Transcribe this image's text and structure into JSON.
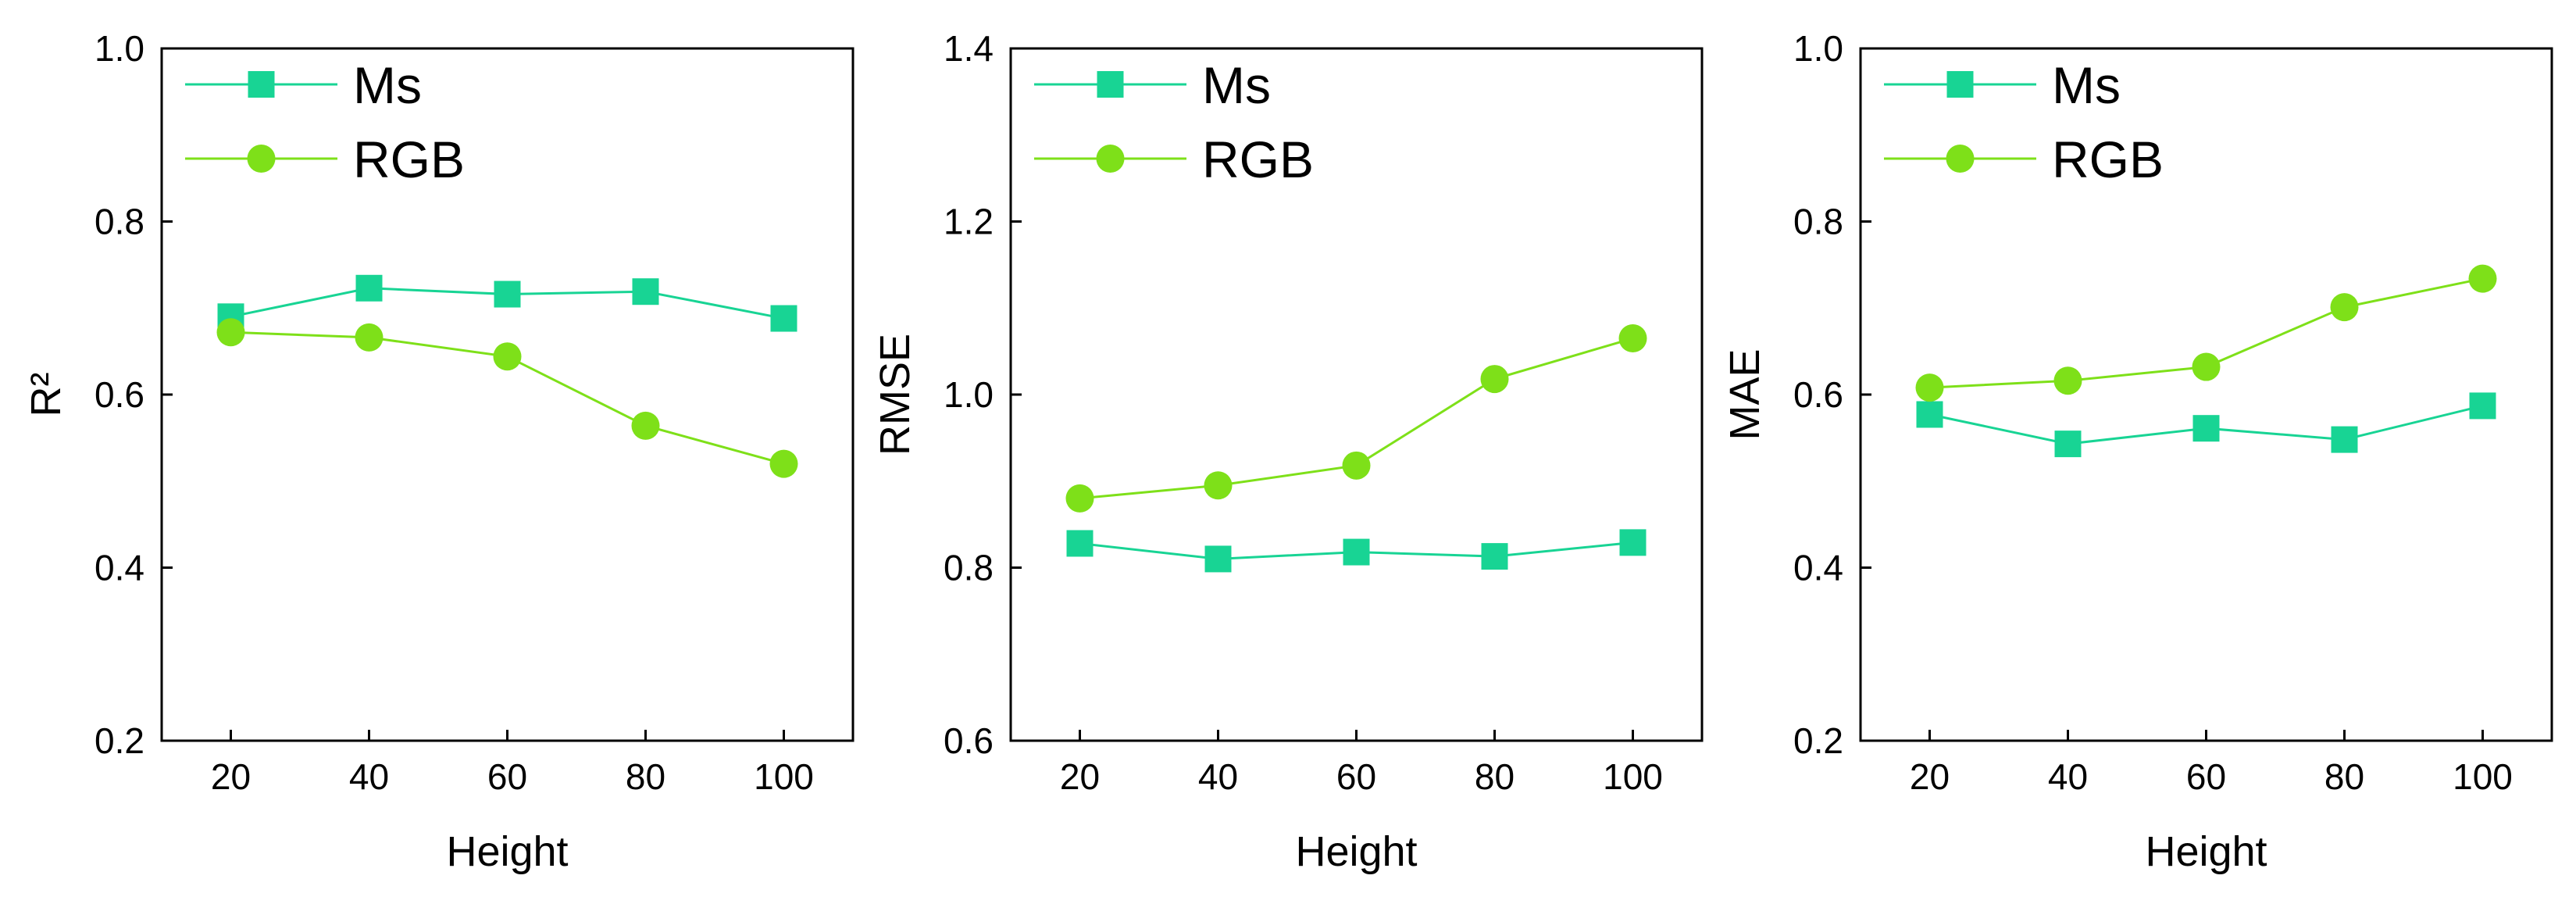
{
  "figure": {
    "background": "#ffffff",
    "colors": {
      "Ms": "#18d494",
      "RGB": "#7ee019"
    }
  },
  "chart_data": [
    {
      "type": "line",
      "x": [
        20,
        40,
        60,
        80,
        100
      ],
      "x_tick_labels": [
        "20",
        "40",
        "60",
        "80",
        "100"
      ],
      "xlabel": "Height",
      "ylabel": "R²",
      "xlim": [
        10,
        110
      ],
      "ylim": [
        0.2,
        1.0
      ],
      "y_ticks": [
        0.2,
        0.4,
        0.6,
        0.8,
        1.0
      ],
      "y_tick_labels": [
        "0.2",
        "0.4",
        "0.6",
        "0.8",
        "1.0"
      ],
      "legend_position": "top-left",
      "series": [
        {
          "name": "Ms",
          "marker": "square",
          "color": "#18d494",
          "values": [
            0.69,
            0.723,
            0.716,
            0.719,
            0.688
          ]
        },
        {
          "name": "RGB",
          "marker": "circle",
          "color": "#7ee019",
          "values": [
            0.672,
            0.666,
            0.644,
            0.564,
            0.52
          ]
        }
      ]
    },
    {
      "type": "line",
      "x": [
        20,
        40,
        60,
        80,
        100
      ],
      "x_tick_labels": [
        "20",
        "40",
        "60",
        "80",
        "100"
      ],
      "xlabel": "Height",
      "ylabel": "RMSE",
      "xlim": [
        10,
        110
      ],
      "ylim": [
        0.6,
        1.4
      ],
      "y_ticks": [
        0.6,
        0.8,
        1.0,
        1.2,
        1.4
      ],
      "y_tick_labels": [
        "0.6",
        "0.8",
        "1.0",
        "1.2",
        "1.4"
      ],
      "legend_position": "top-left",
      "series": [
        {
          "name": "Ms",
          "marker": "square",
          "color": "#18d494",
          "values": [
            0.828,
            0.81,
            0.818,
            0.813,
            0.829
          ]
        },
        {
          "name": "RGB",
          "marker": "circle",
          "color": "#7ee019",
          "values": [
            0.88,
            0.895,
            0.918,
            1.018,
            1.065
          ]
        }
      ]
    },
    {
      "type": "line",
      "x": [
        20,
        40,
        60,
        80,
        100
      ],
      "x_tick_labels": [
        "20",
        "40",
        "60",
        "80",
        "100"
      ],
      "xlabel": "Height",
      "ylabel": "MAE",
      "xlim": [
        10,
        110
      ],
      "ylim": [
        0.2,
        1.0
      ],
      "y_ticks": [
        0.2,
        0.4,
        0.6,
        0.8,
        1.0
      ],
      "y_tick_labels": [
        "0.2",
        "0.4",
        "0.6",
        "0.8",
        "1.0"
      ],
      "legend_position": "top-left",
      "series": [
        {
          "name": "Ms",
          "marker": "square",
          "color": "#18d494",
          "values": [
            0.577,
            0.543,
            0.561,
            0.548,
            0.587
          ]
        },
        {
          "name": "RGB",
          "marker": "circle",
          "color": "#7ee019",
          "values": [
            0.608,
            0.616,
            0.632,
            0.701,
            0.734
          ]
        }
      ]
    }
  ]
}
